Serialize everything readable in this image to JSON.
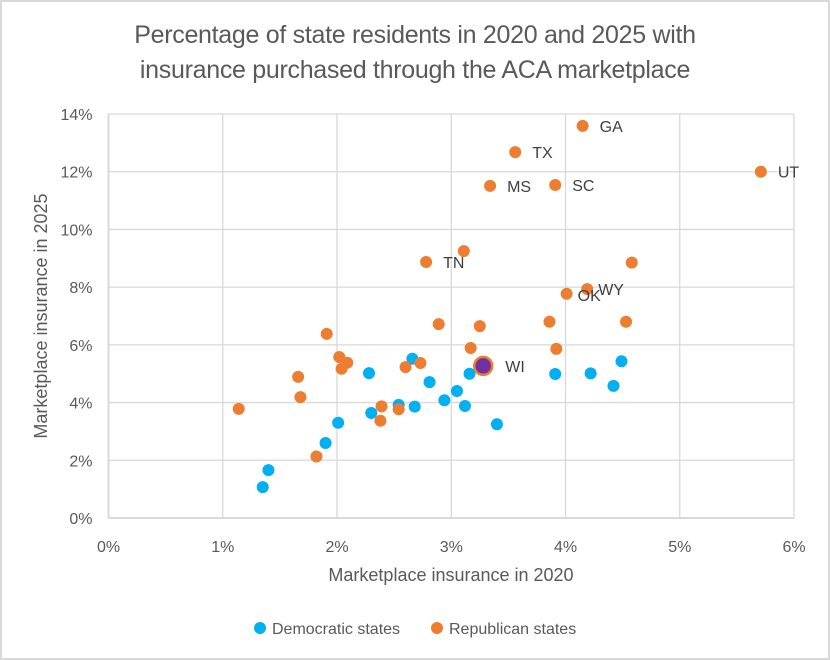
{
  "chart_data": {
    "type": "scatter",
    "title": "Percentage of state residents in 2020 and 2025 with insurance purchased through the ACA marketplace",
    "title_lines": [
      "Percentage of state residents in 2020 and 2025 with",
      "insurance purchased through the ACA marketplace"
    ],
    "xlabel": "Marketplace insurance in 2020",
    "ylabel": "Marketplace insurance in 2025",
    "xlim": [
      0,
      6
    ],
    "ylim": [
      0,
      14
    ],
    "x_ticks": [
      0,
      1,
      2,
      3,
      4,
      5,
      6
    ],
    "x_tick_labels": [
      "0%",
      "1%",
      "2%",
      "3%",
      "4%",
      "5%",
      "6%"
    ],
    "y_ticks": [
      0,
      2,
      4,
      6,
      8,
      10,
      12,
      14
    ],
    "y_tick_labels": [
      "0%",
      "2%",
      "4%",
      "6%",
      "8%",
      "10%",
      "12%",
      "14%"
    ],
    "grid": true,
    "legend_position": "bottom",
    "series": [
      {
        "name": "Democratic states",
        "color": "#00b0f0",
        "points": [
          {
            "x": 1.35,
            "y": 1.07
          },
          {
            "x": 1.4,
            "y": 1.66
          },
          {
            "x": 1.9,
            "y": 2.6
          },
          {
            "x": 2.01,
            "y": 3.3
          },
          {
            "x": 2.28,
            "y": 5.02
          },
          {
            "x": 2.3,
            "y": 3.64
          },
          {
            "x": 2.54,
            "y": 3.92
          },
          {
            "x": 2.66,
            "y": 5.52
          },
          {
            "x": 2.68,
            "y": 3.86
          },
          {
            "x": 2.81,
            "y": 4.71
          },
          {
            "x": 2.94,
            "y": 4.08
          },
          {
            "x": 3.05,
            "y": 4.4
          },
          {
            "x": 3.12,
            "y": 3.88
          },
          {
            "x": 3.16,
            "y": 5.0
          },
          {
            "x": 3.4,
            "y": 3.25
          },
          {
            "x": 3.91,
            "y": 4.99
          },
          {
            "x": 4.22,
            "y": 5.01
          },
          {
            "x": 4.42,
            "y": 4.58
          },
          {
            "x": 4.49,
            "y": 5.43
          }
        ]
      },
      {
        "name": "Republican states",
        "color": "#ed7d31",
        "points": [
          {
            "x": 1.14,
            "y": 3.78
          },
          {
            "x": 1.66,
            "y": 4.89
          },
          {
            "x": 1.68,
            "y": 4.19
          },
          {
            "x": 1.82,
            "y": 2.13
          },
          {
            "x": 1.91,
            "y": 6.38
          },
          {
            "x": 2.02,
            "y": 5.58
          },
          {
            "x": 2.04,
            "y": 5.17
          },
          {
            "x": 2.09,
            "y": 5.38
          },
          {
            "x": 2.38,
            "y": 3.37
          },
          {
            "x": 2.39,
            "y": 3.87
          },
          {
            "x": 2.54,
            "y": 3.77
          },
          {
            "x": 2.6,
            "y": 5.23
          },
          {
            "x": 2.73,
            "y": 5.37
          },
          {
            "x": 2.78,
            "y": 8.87,
            "label": "TN"
          },
          {
            "x": 2.89,
            "y": 6.72
          },
          {
            "x": 3.11,
            "y": 9.25
          },
          {
            "x": 3.17,
            "y": 5.89
          },
          {
            "x": 3.25,
            "y": 6.65
          },
          {
            "x": 3.34,
            "y": 11.51,
            "label": "MS"
          },
          {
            "x": 3.56,
            "y": 12.68,
            "label": "TX"
          },
          {
            "x": 3.86,
            "y": 6.8
          },
          {
            "x": 3.91,
            "y": 11.54,
            "label": "SC"
          },
          {
            "x": 3.92,
            "y": 5.86
          },
          {
            "x": 4.01,
            "y": 7.77,
            "label": "OK"
          },
          {
            "x": 4.15,
            "y": 13.59,
            "label": "GA"
          },
          {
            "x": 4.19,
            "y": 7.93,
            "label": "WY"
          },
          {
            "x": 4.53,
            "y": 6.8
          },
          {
            "x": 4.58,
            "y": 8.85
          },
          {
            "x": 5.71,
            "y": 12.0,
            "label": "UT"
          }
        ]
      }
    ],
    "highlight": {
      "label": "WI",
      "x": 3.28,
      "y": 5.27,
      "fill": "#7030a0",
      "stroke": "#ed7d31"
    },
    "gridline_color": "#d9d9d9",
    "text_color": "#595959"
  }
}
